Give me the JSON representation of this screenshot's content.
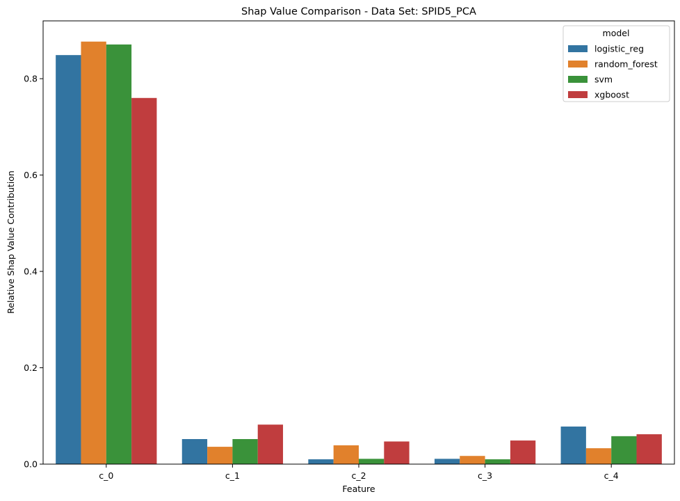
{
  "chart_data": {
    "type": "bar",
    "title": "Shap Value Comparison - Data Set: SPID5_PCA",
    "xlabel": "Feature",
    "ylabel": "Relative Shap Value Contribution",
    "categories": [
      "c_0",
      "c_1",
      "c_2",
      "c_3",
      "c_4"
    ],
    "ylim": [
      0,
      0.92
    ],
    "yticks": [
      0.0,
      0.2,
      0.4,
      0.6,
      0.8
    ],
    "ytick_labels": [
      "0.0",
      "0.2",
      "0.4",
      "0.6",
      "0.8"
    ],
    "grid": false,
    "legend": {
      "title": "model",
      "placement": "top-right"
    },
    "series": [
      {
        "name": "logistic_reg",
        "color": "#3274a1",
        "values": [
          0.849,
          0.052,
          0.01,
          0.011,
          0.078
        ]
      },
      {
        "name": "random_forest",
        "color": "#e1812c",
        "values": [
          0.877,
          0.036,
          0.039,
          0.017,
          0.033
        ]
      },
      {
        "name": "svm",
        "color": "#3a923a",
        "values": [
          0.871,
          0.052,
          0.011,
          0.01,
          0.058
        ]
      },
      {
        "name": "xgboost",
        "color": "#c03d3e",
        "values": [
          0.76,
          0.082,
          0.047,
          0.049,
          0.062
        ]
      }
    ]
  }
}
